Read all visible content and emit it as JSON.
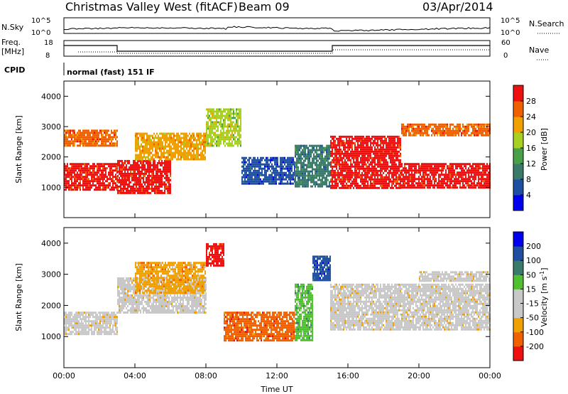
{
  "header": {
    "station": "Christmas Valley West (fitACF)",
    "beam": "Beam 09",
    "date": "03/Apr/2014"
  },
  "top_panels": {
    "nsky_label": "N.Sky",
    "nsky_ticks": [
      "10^5",
      "10^0"
    ],
    "nsky_right_ticks": [
      "10^5",
      "10^0"
    ],
    "nsearch_label": "N.Search",
    "freq_label_1": "Freq.",
    "freq_label_2": "[MHz]",
    "freq_ticks": [
      "18",
      "8"
    ],
    "nave_ticks": [
      "60",
      "0"
    ],
    "nave_label": "Nave",
    "cpid_label": "CPID",
    "cpid_text": "normal (fast) 151 IF"
  },
  "colors": {
    "power": [
      "#0000ee",
      "#1f4fa0",
      "#3a7a6a",
      "#48a048",
      "#a8d020",
      "#f0a000",
      "#f06000",
      "#ee1010"
    ],
    "velocity": [
      "#ee1010",
      "#f06000",
      "#f0a000",
      "#c8c8c8",
      "#c8c8c8",
      "#50c030",
      "#3a7a6a",
      "#1f4fa0",
      "#0000ee"
    ]
  },
  "chart_data": [
    {
      "type": "heatmap",
      "name": "power",
      "x_ticks": [
        "00:00",
        "04:00",
        "08:00",
        "12:00",
        "16:00",
        "20:00",
        "00:00"
      ],
      "x_hours": [
        0,
        4,
        8,
        12,
        16,
        20,
        24
      ],
      "xlabel": "Time UT",
      "ylabel": "Slant Range [km]",
      "ylim": [
        0,
        4500
      ],
      "y_ticks": [
        1000,
        2000,
        3000,
        4000
      ],
      "colorbar_label": "Power [dB]",
      "colorbar_ticks": [
        "4",
        "8",
        "12",
        "16",
        "20",
        "24",
        "28"
      ],
      "clim": [
        0,
        30
      ],
      "regions": [
        {
          "t": [
            0,
            3
          ],
          "r": [
            900,
            1800
          ],
          "level": 7
        },
        {
          "t": [
            0,
            3
          ],
          "r": [
            2400,
            2900
          ],
          "level": 6
        },
        {
          "t": [
            3,
            6
          ],
          "r": [
            800,
            1900
          ],
          "level": 7
        },
        {
          "t": [
            4,
            8
          ],
          "r": [
            1900,
            2800
          ],
          "level": 5
        },
        {
          "t": [
            8,
            10
          ],
          "r": [
            2400,
            3600
          ],
          "level": 4
        },
        {
          "t": [
            10,
            13
          ],
          "r": [
            1100,
            2000
          ],
          "level": 1
        },
        {
          "t": [
            13,
            15
          ],
          "r": [
            1000,
            2400
          ],
          "level": 2
        },
        {
          "t": [
            15,
            19
          ],
          "r": [
            1000,
            2700
          ],
          "level": 7
        },
        {
          "t": [
            19,
            24
          ],
          "r": [
            1000,
            1800
          ],
          "level": 7
        },
        {
          "t": [
            19,
            24
          ],
          "r": [
            2700,
            3100
          ],
          "level": 6
        }
      ]
    },
    {
      "type": "heatmap",
      "name": "velocity",
      "x_ticks": [
        "00:00",
        "04:00",
        "08:00",
        "12:00",
        "16:00",
        "20:00",
        "00:00"
      ],
      "x_hours": [
        0,
        4,
        8,
        12,
        16,
        20,
        24
      ],
      "xlabel": "Time UT",
      "ylabel": "Slant Range [km]",
      "ylim": [
        0,
        4500
      ],
      "y_ticks": [
        1000,
        2000,
        3000,
        4000
      ],
      "colorbar_label": "Velocity [m s",
      "colorbar_label_sup": "-1",
      "colorbar_label_end": "]",
      "colorbar_ticks": [
        "200",
        "100",
        "50",
        "15",
        "-15",
        "-50",
        "-100",
        "-200"
      ],
      "clim": [
        -250,
        250
      ],
      "regions": [
        {
          "t": [
            0,
            3
          ],
          "r": [
            1100,
            1800
          ],
          "level": 3
        },
        {
          "t": [
            3,
            8
          ],
          "r": [
            1800,
            2900
          ],
          "level": 3
        },
        {
          "t": [
            4,
            8
          ],
          "r": [
            2400,
            3400
          ],
          "level": 2
        },
        {
          "t": [
            8,
            9
          ],
          "r": [
            3300,
            4000
          ],
          "level": 0
        },
        {
          "t": [
            9,
            13
          ],
          "r": [
            900,
            1800
          ],
          "level": 1
        },
        {
          "t": [
            13,
            14
          ],
          "r": [
            900,
            2700
          ],
          "level": 5
        },
        {
          "t": [
            14,
            15
          ],
          "r": [
            2800,
            3600
          ],
          "level": 7
        },
        {
          "t": [
            15,
            24
          ],
          "r": [
            1200,
            2700
          ],
          "level": 3
        },
        {
          "t": [
            20,
            24
          ],
          "r": [
            2800,
            3100
          ],
          "level": 3
        }
      ]
    }
  ]
}
